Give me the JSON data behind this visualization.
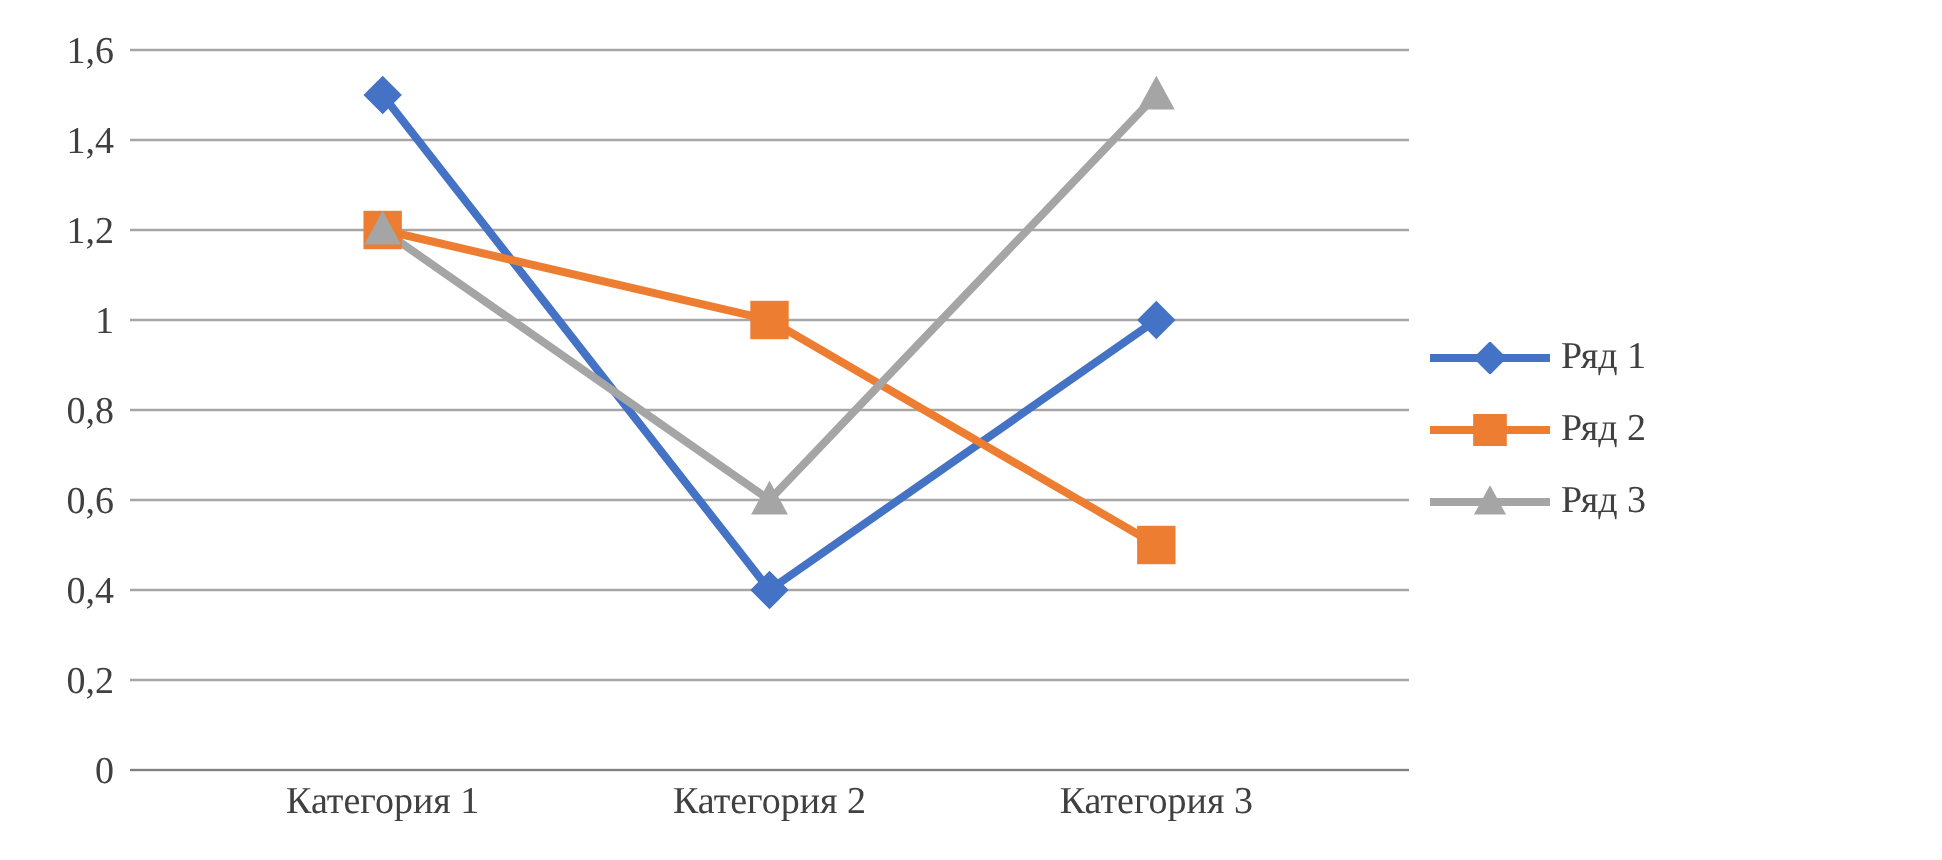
{
  "chart_data": {
    "type": "line",
    "categories": [
      "Категория 1",
      "Категория 2",
      "Категория 3"
    ],
    "series": [
      {
        "name": "Ряд 1",
        "color": "#4472c4",
        "values": [
          1.5,
          0.4,
          1.0
        ],
        "marker": "diamond"
      },
      {
        "name": "Ряд 2",
        "color": "#ed7d31",
        "values": [
          1.2,
          1.0,
          0.5
        ],
        "marker": "square"
      },
      {
        "name": "Ряд 3",
        "color": "#a5a5a5",
        "values": [
          1.2,
          0.6,
          1.5
        ],
        "marker": "triangle"
      }
    ],
    "ylim": [
      0,
      1.6
    ],
    "yticks": [
      0,
      {
        "value": 0.2,
        "label": "0,2"
      },
      {
        "value": 0.4,
        "label": "0,4"
      },
      {
        "value": 0.6,
        "label": "0,6"
      },
      {
        "value": 0.8,
        "label": "0,8"
      },
      1,
      {
        "value": 1.2,
        "label": "1,2"
      },
      {
        "value": 1.4,
        "label": "1,4"
      },
      {
        "value": 1.6,
        "label": "1,6"
      }
    ],
    "grid": "y",
    "legend": "right",
    "line_style": "solid"
  }
}
